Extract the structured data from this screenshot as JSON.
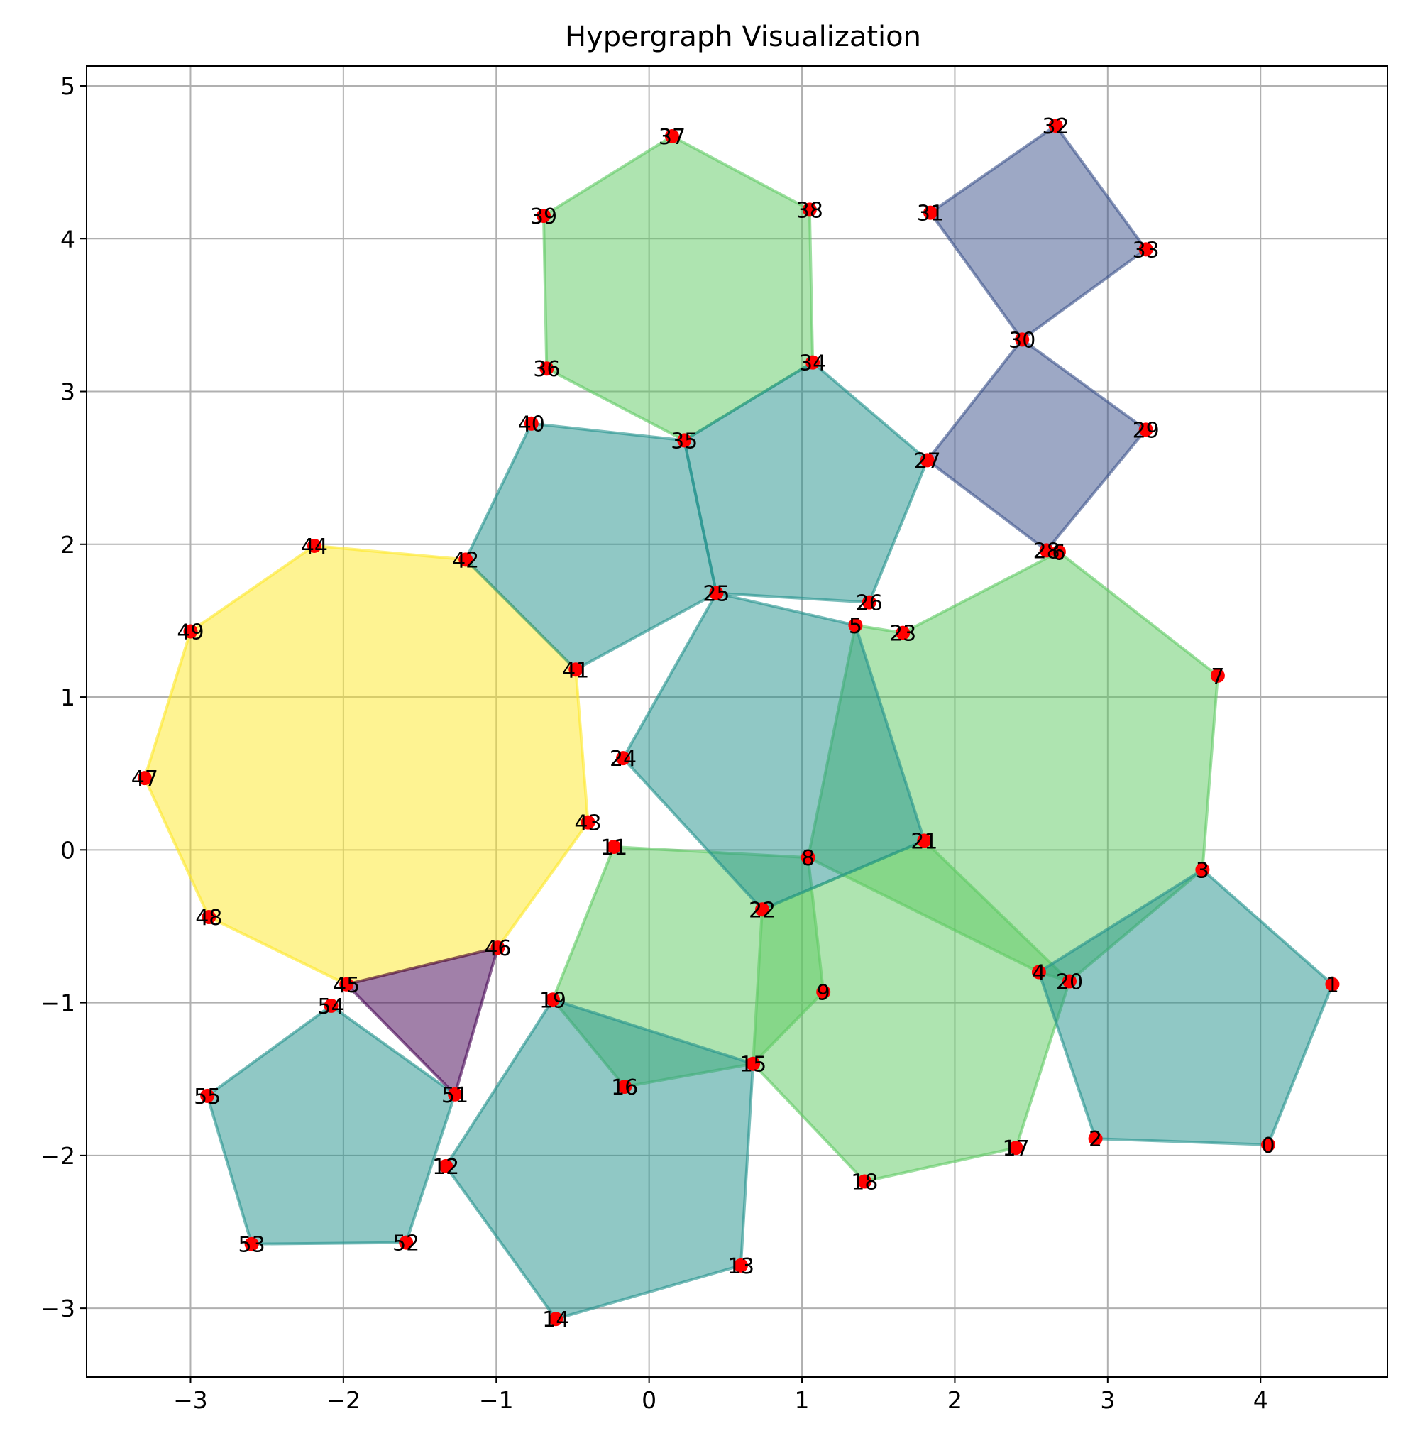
{
  "chart_data": {
    "type": "scatter",
    "title": "Hypergraph Visualization",
    "xlabel": "",
    "ylabel": "",
    "xlim": [
      -3.68,
      4.83
    ],
    "ylim": [
      -3.45,
      5.13
    ],
    "x_ticks": [
      -3,
      -2,
      -1,
      0,
      1,
      2,
      3,
      4
    ],
    "y_ticks": [
      -3,
      -2,
      -1,
      0,
      1,
      2,
      3,
      4,
      5
    ],
    "x_tick_labels": [
      "−3",
      "−2",
      "−1",
      "0",
      "1",
      "2",
      "3",
      "4"
    ],
    "y_tick_labels": [
      "−3",
      "−2",
      "−1",
      "0",
      "1",
      "2",
      "3",
      "4",
      "5"
    ],
    "grid": true,
    "legend": "none",
    "node_color": "#ff0000",
    "nodes": [
      {
        "id": "0",
        "x": 4.05,
        "y": -1.93
      },
      {
        "id": "1",
        "x": 4.47,
        "y": -0.88
      },
      {
        "id": "2",
        "x": 2.92,
        "y": -1.89
      },
      {
        "id": "3",
        "x": 3.62,
        "y": -0.13
      },
      {
        "id": "4",
        "x": 2.55,
        "y": -0.8
      },
      {
        "id": "5",
        "x": 1.35,
        "y": 1.47
      },
      {
        "id": "6",
        "x": 2.68,
        "y": 1.95
      },
      {
        "id": "7",
        "x": 3.72,
        "y": 1.14
      },
      {
        "id": "8",
        "x": 1.04,
        "y": -0.05
      },
      {
        "id": "9",
        "x": 1.14,
        "y": -0.93
      },
      {
        "id": "11",
        "x": -0.23,
        "y": 0.02
      },
      {
        "id": "12",
        "x": -1.33,
        "y": -2.07
      },
      {
        "id": "13",
        "x": 0.6,
        "y": -2.72
      },
      {
        "id": "14",
        "x": -0.61,
        "y": -3.07
      },
      {
        "id": "15",
        "x": 0.68,
        "y": -1.4
      },
      {
        "id": "16",
        "x": -0.16,
        "y": -1.55
      },
      {
        "id": "17",
        "x": 2.4,
        "y": -1.95
      },
      {
        "id": "18",
        "x": 1.41,
        "y": -2.17
      },
      {
        "id": "19",
        "x": -0.63,
        "y": -0.98
      },
      {
        "id": "20",
        "x": 2.75,
        "y": -0.86
      },
      {
        "id": "21",
        "x": 1.8,
        "y": 0.06
      },
      {
        "id": "22",
        "x": 0.74,
        "y": -0.39
      },
      {
        "id": "23",
        "x": 1.66,
        "y": 1.42
      },
      {
        "id": "24",
        "x": -0.17,
        "y": 0.6
      },
      {
        "id": "25",
        "x": 0.44,
        "y": 1.68
      },
      {
        "id": "26",
        "x": 1.44,
        "y": 1.62
      },
      {
        "id": "27",
        "x": 1.82,
        "y": 2.55
      },
      {
        "id": "28",
        "x": 2.6,
        "y": 1.96
      },
      {
        "id": "29",
        "x": 3.25,
        "y": 2.75
      },
      {
        "id": "30",
        "x": 2.44,
        "y": 3.34
      },
      {
        "id": "31",
        "x": 1.84,
        "y": 4.17
      },
      {
        "id": "32",
        "x": 2.66,
        "y": 4.74
      },
      {
        "id": "33",
        "x": 3.25,
        "y": 3.93
      },
      {
        "id": "34",
        "x": 1.07,
        "y": 3.19
      },
      {
        "id": "35",
        "x": 0.23,
        "y": 2.68
      },
      {
        "id": "36",
        "x": -0.67,
        "y": 3.15
      },
      {
        "id": "37",
        "x": 0.15,
        "y": 4.67
      },
      {
        "id": "38",
        "x": 1.05,
        "y": 4.19
      },
      {
        "id": "39",
        "x": -0.69,
        "y": 4.15
      },
      {
        "id": "40",
        "x": -0.77,
        "y": 2.79
      },
      {
        "id": "41",
        "x": -0.48,
        "y": 1.18
      },
      {
        "id": "42",
        "x": -1.2,
        "y": 1.9
      },
      {
        "id": "43",
        "x": -0.4,
        "y": 0.18
      },
      {
        "id": "44",
        "x": -2.19,
        "y": 1.99
      },
      {
        "id": "45",
        "x": -1.98,
        "y": -0.88
      },
      {
        "id": "46",
        "x": -0.99,
        "y": -0.64
      },
      {
        "id": "47",
        "x": -3.3,
        "y": 0.47
      },
      {
        "id": "48",
        "x": -2.88,
        "y": -0.44
      },
      {
        "id": "49",
        "x": -3.0,
        "y": 1.43
      },
      {
        "id": "51",
        "x": -1.27,
        "y": -1.6
      },
      {
        "id": "52",
        "x": -1.59,
        "y": -2.57
      },
      {
        "id": "53",
        "x": -2.6,
        "y": -2.58
      },
      {
        "id": "54",
        "x": -2.08,
        "y": -1.02
      },
      {
        "id": "55",
        "x": -2.89,
        "y": -1.61
      }
    ],
    "hyperedges": [
      {
        "nodes": [
          "44",
          "42",
          "41",
          "43",
          "46",
          "45",
          "48",
          "47",
          "49"
        ],
        "color": "#fde725"
      },
      {
        "nodes": [
          "39",
          "37",
          "38",
          "34",
          "35",
          "36"
        ],
        "color": "#5ec962"
      },
      {
        "nodes": [
          "6",
          "7",
          "3",
          "20",
          "4",
          "8",
          "5",
          "23"
        ],
        "color": "#5ec962"
      },
      {
        "nodes": [
          "11",
          "8",
          "9",
          "15",
          "16",
          "19"
        ],
        "color": "#5ec962"
      },
      {
        "nodes": [
          "21",
          "20",
          "17",
          "18",
          "15",
          "22"
        ],
        "color": "#5ec962"
      },
      {
        "nodes": [
          "40",
          "35",
          "25",
          "41",
          "42"
        ],
        "color": "#21918c"
      },
      {
        "nodes": [
          "34",
          "27",
          "26",
          "25",
          "35"
        ],
        "color": "#21918c"
      },
      {
        "nodes": [
          "25",
          "5",
          "21",
          "22",
          "24"
        ],
        "color": "#21918c"
      },
      {
        "nodes": [
          "3",
          "1",
          "0",
          "2",
          "4"
        ],
        "color": "#21918c"
      },
      {
        "nodes": [
          "19",
          "15",
          "13",
          "14",
          "12"
        ],
        "color": "#21918c"
      },
      {
        "nodes": [
          "54",
          "51",
          "52",
          "53",
          "55"
        ],
        "color": "#21918c"
      },
      {
        "nodes": [
          "31",
          "32",
          "33",
          "30"
        ],
        "color": "#3b528b"
      },
      {
        "nodes": [
          "30",
          "29",
          "28",
          "27"
        ],
        "color": "#3b528b"
      },
      {
        "nodes": [
          "45",
          "46",
          "51"
        ],
        "color": "#440154"
      }
    ]
  }
}
